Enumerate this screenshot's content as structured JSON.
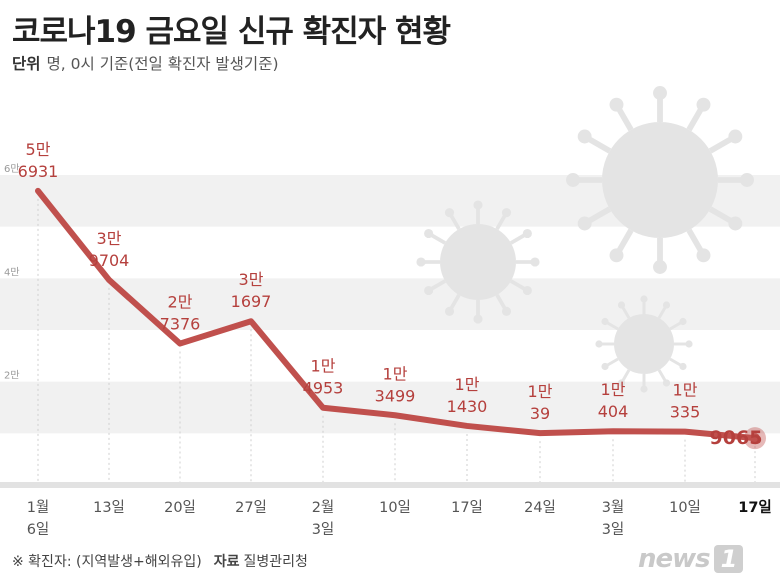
{
  "header": {
    "title": "코로나19 금요일 신규 확진자 현황",
    "unit_label": "단위",
    "unit_text": "명, 0시 기준(전일 확진자 발생기준)"
  },
  "footer": {
    "note": "※ 확진자: (지역발생+해외유입)",
    "source_label": "자료",
    "source": "질병관리청"
  },
  "logo": {
    "text": "news",
    "box": "1"
  },
  "chart_data": {
    "type": "line",
    "categories": [
      "1월\n6일",
      "13일",
      "20일",
      "27일",
      "2월\n3일",
      "10일",
      "17일",
      "24일",
      "3월\n3일",
      "10일",
      "17일"
    ],
    "values": [
      56931,
      39704,
      27376,
      31697,
      14953,
      13499,
      11430,
      10039,
      10404,
      10335,
      9065
    ],
    "value_labels": [
      [
        "5만",
        "6931"
      ],
      [
        "3만",
        "9704"
      ],
      [
        "2만",
        "7376"
      ],
      [
        "3만",
        "1697"
      ],
      [
        "1만",
        "4953"
      ],
      [
        "1만",
        "3499"
      ],
      [
        "1만",
        "1430"
      ],
      [
        "1만",
        "39"
      ],
      [
        "1만",
        "404"
      ],
      [
        "1만",
        "335"
      ],
      [
        "",
        "9065"
      ]
    ],
    "y_ticks": [
      "2만",
      "4만",
      "6만"
    ],
    "ylim": [
      0,
      60000
    ],
    "highlight_last": true,
    "colors": {
      "line": "#c0504d",
      "label": "#b5403d",
      "band": "#f1f1f1",
      "virus": "#e4e4e4"
    }
  }
}
